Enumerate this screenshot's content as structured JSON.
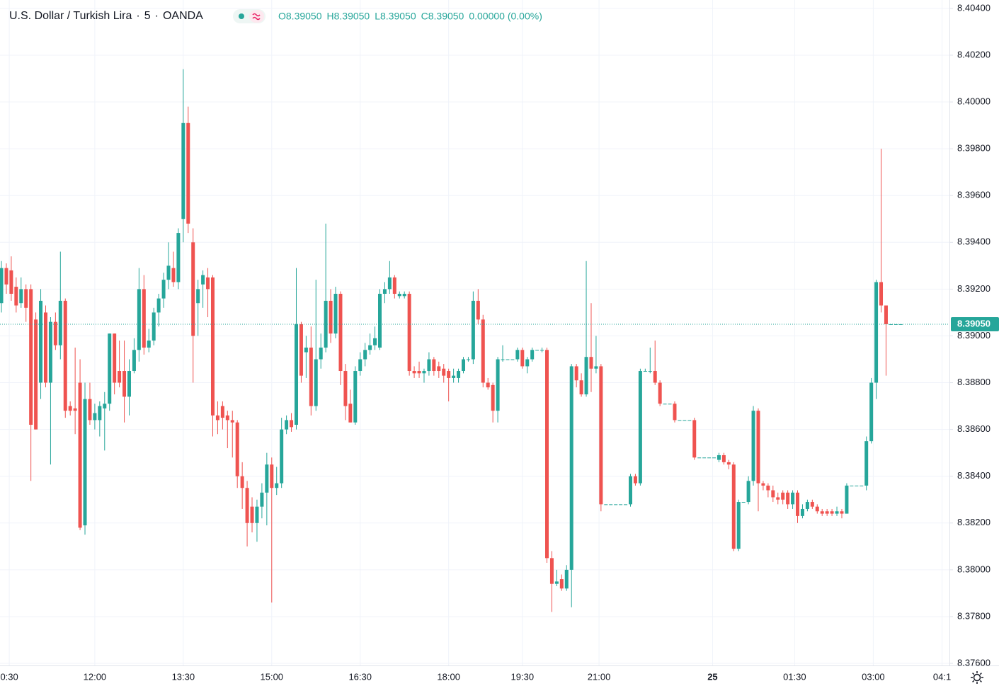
{
  "chart_data": {
    "type": "candlestick",
    "symbol": "U.S. Dollar / Turkish Lira",
    "interval": "5",
    "source": "OANDA",
    "readout": [
      "O8.39050",
      "H8.39050",
      "L8.39050",
      "C8.39050",
      "0.00000 (0.00%)"
    ],
    "up_color": "#26a69a",
    "down_color": "#ef5350",
    "grid": true,
    "ylim": [
      8.37591,
      8.40436
    ],
    "yticks": [
      {
        "value": 8.376,
        "label": "8.37600"
      },
      {
        "value": 8.378,
        "label": "8.37800"
      },
      {
        "value": 8.38,
        "label": "8.38000"
      },
      {
        "value": 8.382,
        "label": "8.38200"
      },
      {
        "value": 8.384,
        "label": "8.38400"
      },
      {
        "value": 8.386,
        "label": "8.38600"
      },
      {
        "value": 8.388,
        "label": "8.38800"
      },
      {
        "value": 8.39,
        "label": "8.39000"
      },
      {
        "value": 8.392,
        "label": "8.39200"
      },
      {
        "value": 8.394,
        "label": "8.39400"
      },
      {
        "value": 8.396,
        "label": "8.39600"
      },
      {
        "value": 8.398,
        "label": "8.39800"
      },
      {
        "value": 8.4,
        "label": "8.40000"
      },
      {
        "value": 8.402,
        "label": "8.40200"
      },
      {
        "value": 8.404,
        "label": "8.40400"
      }
    ],
    "xlim": [
      -0.29,
      192.9
    ],
    "xticks": [
      {
        "value": 1.6,
        "label": "0:30"
      },
      {
        "value": 19,
        "label": "12:00"
      },
      {
        "value": 37,
        "label": "13:30"
      },
      {
        "value": 55,
        "label": "15:00"
      },
      {
        "value": 73,
        "label": "16:30"
      },
      {
        "value": 91,
        "label": "18:00"
      },
      {
        "value": 106,
        "label": "19:30"
      },
      {
        "value": 121.6,
        "label": "21:00"
      },
      {
        "value": 144.7,
        "label": "25"
      },
      {
        "value": 161.4,
        "label": "01:30"
      },
      {
        "value": 177.4,
        "label": "03:00"
      },
      {
        "value": 191.4,
        "label": "04:1"
      }
    ],
    "last_price": {
      "value": 8.3905,
      "label": "8.39050"
    },
    "ohlc": [
      [
        8.3914,
        8.3932,
        8.391,
        8.3929
      ],
      [
        8.3929,
        8.3931,
        8.3918,
        8.3922
      ],
      [
        8.3928,
        8.3934,
        8.3915,
        8.3918
      ],
      [
        8.3921,
        8.3925,
        8.391,
        8.3913
      ],
      [
        8.3914,
        8.3925,
        8.3912,
        8.392
      ],
      [
        8.392,
        8.3922,
        8.3906,
        8.3912
      ],
      [
        8.392,
        8.3922,
        8.3838,
        8.3862
      ],
      [
        8.3907,
        8.391,
        8.386,
        8.386
      ],
      [
        8.388,
        8.392,
        8.3873,
        8.3915
      ],
      [
        8.391,
        8.3913,
        8.3878,
        8.388
      ],
      [
        8.388,
        8.3908,
        8.3845,
        8.3906
      ],
      [
        8.3906,
        8.391,
        8.3894,
        8.3896
      ],
      [
        8.3896,
        8.3936,
        8.389,
        8.3915
      ],
      [
        8.3915,
        8.3916,
        8.3865,
        8.3868
      ],
      [
        8.387,
        8.3872,
        8.3866,
        8.3868
      ],
      [
        8.3869,
        8.3895,
        8.3858,
        8.3868
      ],
      [
        8.388,
        8.389,
        8.3817,
        8.3818
      ],
      [
        8.3819,
        8.388,
        8.3815,
        8.3873
      ],
      [
        8.3873,
        8.388,
        8.3862,
        8.3864
      ],
      [
        8.3864,
        8.3871,
        8.386,
        8.3867
      ],
      [
        8.3864,
        8.3872,
        8.3857,
        8.387
      ],
      [
        8.3869,
        8.3876,
        8.3851,
        8.3871
      ],
      [
        8.3871,
        8.3901,
        8.3868,
        8.3901
      ],
      [
        8.3901,
        8.3901,
        8.3875,
        8.388
      ],
      [
        8.3885,
        8.3898,
        8.3878,
        8.388
      ],
      [
        8.3885,
        8.3898,
        8.3863,
        8.3874
      ],
      [
        8.3874,
        8.389,
        8.3866,
        8.3885
      ],
      [
        8.3885,
        8.3899,
        8.3884,
        8.3894
      ],
      [
        8.3894,
        8.3929,
        8.3889,
        8.392
      ],
      [
        8.392,
        8.3926,
        8.3892,
        8.3895
      ],
      [
        8.3895,
        8.3903,
        8.3893,
        8.3898
      ],
      [
        8.3898,
        8.3912,
        8.3896,
        8.391
      ],
      [
        8.391,
        8.3918,
        8.3904,
        8.3916
      ],
      [
        8.3916,
        8.3927,
        8.3912,
        8.3924
      ],
      [
        8.3924,
        8.394,
        8.392,
        8.393
      ],
      [
        8.3929,
        8.3936,
        8.3921,
        8.3923
      ],
      [
        8.3923,
        8.3946,
        8.392,
        8.3944
      ],
      [
        8.395,
        8.4014,
        8.394,
        8.3991
      ],
      [
        8.3991,
        8.3998,
        8.3944,
        8.3948
      ],
      [
        8.394,
        8.3946,
        8.388,
        8.39
      ],
      [
        8.3914,
        8.3924,
        8.39,
        8.392
      ],
      [
        8.3922,
        8.3928,
        8.3912,
        8.3926
      ],
      [
        8.3925,
        8.3929,
        8.3908,
        8.392
      ],
      [
        8.3925,
        8.3926,
        8.3857,
        8.3866
      ],
      [
        8.3866,
        8.3872,
        8.3858,
        8.3864
      ],
      [
        8.387,
        8.3872,
        8.386,
        8.3865
      ],
      [
        8.3866,
        8.3868,
        8.3852,
        8.3864
      ],
      [
        8.3864,
        8.3868,
        8.3848,
        8.3863
      ],
      [
        8.3863,
        8.3864,
        8.3835,
        8.384
      ],
      [
        8.384,
        8.3846,
        8.3826,
        8.3835
      ],
      [
        8.3835,
        8.3838,
        8.381,
        8.382
      ],
      [
        8.3827,
        8.3831,
        8.3816,
        8.382
      ],
      [
        8.382,
        8.383,
        8.3812,
        8.3827
      ],
      [
        8.3827,
        8.3837,
        8.3822,
        8.3833
      ],
      [
        8.3833,
        8.385,
        8.3819,
        8.3845
      ],
      [
        8.3845,
        8.3848,
        8.3786,
        8.3835
      ],
      [
        8.3835,
        8.3844,
        8.3832,
        8.3837
      ],
      [
        8.3837,
        8.3865,
        8.3835,
        8.386
      ],
      [
        8.386,
        8.3866,
        8.3858,
        8.3864
      ],
      [
        8.3864,
        8.3867,
        8.3859,
        8.3861
      ],
      [
        8.3862,
        8.3929,
        8.386,
        8.3905
      ],
      [
        8.3905,
        8.3906,
        8.388,
        8.3883
      ],
      [
        8.3893,
        8.39,
        8.3882,
        8.3895
      ],
      [
        8.3895,
        8.3904,
        8.3866,
        8.387
      ],
      [
        8.387,
        8.3924,
        8.3868,
        8.389
      ],
      [
        8.389,
        8.3901,
        8.3886,
        8.3895
      ],
      [
        8.3895,
        8.3948,
        8.3893,
        8.3915
      ],
      [
        8.3915,
        8.392,
        8.3897,
        8.3901
      ],
      [
        8.3901,
        8.3921,
        8.3899,
        8.3918
      ],
      [
        8.3918,
        8.3919,
        8.3879,
        8.3885
      ],
      [
        8.3885,
        8.3888,
        8.3864,
        8.387
      ],
      [
        8.3871,
        8.3877,
        8.3863,
        8.3863
      ],
      [
        8.3863,
        8.3887,
        8.3862,
        8.3885
      ],
      [
        8.3885,
        8.3893,
        8.3883,
        8.389
      ],
      [
        8.389,
        8.3897,
        8.3887,
        8.3894
      ],
      [
        8.3894,
        8.3901,
        8.3892,
        8.3896
      ],
      [
        8.3896,
        8.3904,
        8.3894,
        8.3899
      ],
      [
        8.3895,
        8.392,
        8.3894,
        8.3918
      ],
      [
        8.3918,
        8.3923,
        8.3914,
        8.392
      ],
      [
        8.392,
        8.3932,
        8.3918,
        8.3925
      ],
      [
        8.3925,
        8.3926,
        8.3916,
        8.3918
      ],
      [
        8.3917,
        8.3919,
        8.3916,
        8.3918
      ],
      [
        8.3917,
        8.3919,
        8.3916,
        8.3918
      ],
      [
        8.3918,
        8.3919,
        8.3883,
        8.3885
      ],
      [
        8.3885,
        8.3887,
        8.3882,
        8.3884
      ],
      [
        8.3885,
        8.3889,
        8.3882,
        8.3884
      ],
      [
        8.3884,
        8.3886,
        8.388,
        8.3885
      ],
      [
        8.3885,
        8.3893,
        8.3883,
        8.389
      ],
      [
        8.389,
        8.3891,
        8.3883,
        8.3885
      ],
      [
        8.3887,
        8.3889,
        8.3882,
        8.3885
      ],
      [
        8.3886,
        8.3888,
        8.388,
        8.3883
      ],
      [
        8.3885,
        8.3886,
        8.3872,
        8.3882
      ],
      [
        8.3882,
        8.3886,
        8.388,
        8.3883
      ],
      [
        8.3882,
        8.3886,
        8.388,
        8.3885
      ],
      [
        8.3885,
        8.3891,
        8.3884,
        8.389
      ],
      [
        8.389,
        8.3891,
        8.3889,
        8.389
      ],
      [
        8.389,
        8.3919,
        8.3888,
        8.3915
      ],
      [
        8.3915,
        8.392,
        8.3905,
        8.3907
      ],
      [
        8.3907,
        8.3909,
        8.3878,
        8.388
      ],
      [
        8.388,
        8.3882,
        8.3877,
        8.3878
      ],
      [
        8.3879,
        8.388,
        8.3863,
        8.3868
      ],
      [
        8.3868,
        8.3891,
        8.3863,
        8.389
      ],
      [
        8.389,
        8.3896,
        8.3889,
        8.389
      ],
      [
        8.389,
        8.389,
        8.389,
        8.389
      ],
      [
        8.389,
        8.389,
        8.389,
        8.389
      ],
      [
        8.389,
        8.3895,
        8.3889,
        8.3894
      ],
      [
        8.3894,
        8.3895,
        8.3886,
        8.3887
      ],
      [
        8.3887,
        8.3891,
        8.3884,
        8.389
      ],
      [
        8.389,
        8.3895,
        8.3889,
        8.3894
      ],
      [
        8.3894,
        8.3894,
        8.3894,
        8.3894
      ],
      [
        8.3894,
        8.3895,
        8.3893,
        8.3894
      ],
      [
        8.3894,
        8.3895,
        8.3803,
        8.3805
      ],
      [
        8.3805,
        8.3808,
        8.3782,
        8.3794
      ],
      [
        8.3794,
        8.38,
        8.3793,
        8.3795
      ],
      [
        8.3796,
        8.3798,
        8.3791,
        8.3792
      ],
      [
        8.3792,
        8.3802,
        8.3791,
        8.38
      ],
      [
        8.38,
        8.3888,
        8.3784,
        8.3887
      ],
      [
        8.3887,
        8.3888,
        8.3878,
        8.3881
      ],
      [
        8.3881,
        8.3884,
        8.3874,
        8.3875
      ],
      [
        8.3875,
        8.3932,
        8.3874,
        8.3891
      ],
      [
        8.3891,
        8.3914,
        8.3876,
        8.3886
      ],
      [
        8.3886,
        8.39,
        8.3884,
        8.3887
      ],
      [
        8.3887,
        8.3888,
        8.3825,
        8.3828
      ],
      [
        8.3828,
        8.3828,
        8.3828,
        8.3828
      ],
      [
        8.3828,
        8.3828,
        8.3828,
        8.3828
      ],
      [
        8.3828,
        8.3828,
        8.3828,
        8.3828
      ],
      [
        8.3828,
        8.3828,
        8.3828,
        8.3828
      ],
      [
        8.3828,
        8.3828,
        8.3828,
        8.3828
      ],
      [
        8.3828,
        8.3841,
        8.3827,
        8.384
      ],
      [
        8.384,
        8.3841,
        8.3836,
        8.3837
      ],
      [
        8.3837,
        8.3886,
        8.3836,
        8.3885
      ],
      [
        8.3885,
        8.3886,
        8.3885,
        8.3885
      ],
      [
        8.3885,
        8.3895,
        8.3884,
        8.3885
      ],
      [
        8.3885,
        8.3898,
        8.3879,
        8.388
      ],
      [
        8.388,
        8.3881,
        8.387,
        8.3871
      ],
      [
        8.3871,
        8.3871,
        8.3871,
        8.3871
      ],
      [
        8.3871,
        8.3871,
        8.3871,
        8.3871
      ],
      [
        8.3871,
        8.3872,
        8.3863,
        8.3864
      ],
      [
        8.3864,
        8.3864,
        8.3864,
        8.3864
      ],
      [
        8.3864,
        8.3864,
        8.3864,
        8.3864
      ],
      [
        8.3864,
        8.3864,
        8.3864,
        8.3864
      ],
      [
        8.3864,
        8.3865,
        8.3847,
        8.3848
      ],
      [
        8.3848,
        8.3848,
        8.3848,
        8.3848
      ],
      [
        8.3848,
        8.3848,
        8.3848,
        8.3848
      ],
      [
        8.3848,
        8.3848,
        8.3848,
        8.3848
      ],
      [
        8.3848,
        8.3848,
        8.3848,
        8.3848
      ],
      [
        8.3847,
        8.385,
        8.3846,
        8.3849
      ],
      [
        8.3849,
        8.385,
        8.3845,
        8.3846
      ],
      [
        8.3846,
        8.3847,
        8.3843,
        8.3845
      ],
      [
        8.3845,
        8.3846,
        8.3808,
        8.3809
      ],
      [
        8.3809,
        8.383,
        8.3808,
        8.3829
      ],
      [
        8.3829,
        8.3829,
        8.3829,
        8.3829
      ],
      [
        8.3829,
        8.384,
        8.3828,
        8.3838
      ],
      [
        8.3838,
        8.387,
        8.3836,
        8.3868
      ],
      [
        8.3868,
        8.3869,
        8.3825,
        8.3837
      ],
      [
        8.3837,
        8.3838,
        8.3834,
        8.3836
      ],
      [
        8.3836,
        8.3837,
        8.3831,
        8.3834
      ],
      [
        8.3834,
        8.3836,
        8.3829,
        8.3831
      ],
      [
        8.3831,
        8.3833,
        8.3828,
        8.383
      ],
      [
        8.3833,
        8.3834,
        8.3828,
        8.383
      ],
      [
        8.3833,
        8.3834,
        8.3826,
        8.3828
      ],
      [
        8.3828,
        8.3834,
        8.3826,
        8.3833
      ],
      [
        8.3833,
        8.3834,
        8.382,
        8.3823
      ],
      [
        8.3823,
        8.3828,
        8.3822,
        8.3826
      ],
      [
        8.3826,
        8.383,
        8.3825,
        8.3829
      ],
      [
        8.3829,
        8.383,
        8.3826,
        8.3827
      ],
      [
        8.3827,
        8.3828,
        8.3824,
        8.3825
      ],
      [
        8.3825,
        8.3826,
        8.3823,
        8.3824
      ],
      [
        8.3825,
        8.3826,
        8.3823,
        8.3824
      ],
      [
        8.3825,
        8.3826,
        8.3823,
        8.3824
      ],
      [
        8.3824,
        8.3827,
        8.3823,
        8.3825
      ],
      [
        8.3825,
        8.3826,
        8.3822,
        8.3824
      ],
      [
        8.3824,
        8.3837,
        8.3824,
        8.3836
      ],
      [
        8.3836,
        8.3836,
        8.3836,
        8.3836
      ],
      [
        8.3836,
        8.3836,
        8.3836,
        8.3836
      ],
      [
        8.3836,
        8.3836,
        8.3836,
        8.3836
      ],
      [
        8.3836,
        8.3857,
        8.3834,
        8.3855
      ],
      [
        8.3855,
        8.3882,
        8.3854,
        8.388
      ],
      [
        8.388,
        8.3924,
        8.3873,
        8.3923
      ],
      [
        8.3923,
        8.398,
        8.391,
        8.3913
      ],
      [
        8.3913,
        8.3913,
        8.3883,
        8.3905
      ],
      [
        8.3905,
        8.3905,
        8.3905,
        8.3905
      ],
      [
        8.3905,
        8.3905,
        8.3905,
        8.3905
      ],
      [
        8.3905,
        8.3905,
        8.3905,
        8.3905
      ]
    ]
  }
}
